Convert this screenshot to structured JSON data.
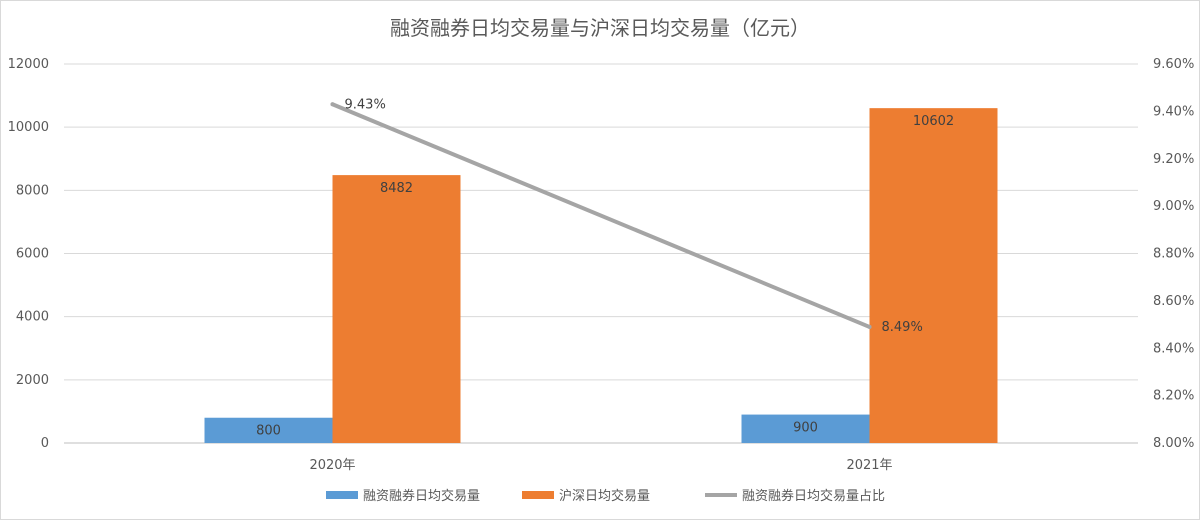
{
  "chart_data": {
    "type": "bar",
    "title": "融资融券日均交易量与沪深日均交易量（亿元）",
    "categories": [
      "2020年",
      "2021年"
    ],
    "series": [
      {
        "name": "融资融券日均交易量",
        "kind": "bar",
        "axis": "left",
        "color": "#5b9bd5",
        "values": [
          800,
          900
        ],
        "labels": [
          "800",
          "900"
        ]
      },
      {
        "name": "沪深日均交易量",
        "kind": "bar",
        "axis": "left",
        "color": "#ed7d31",
        "values": [
          8482,
          10602
        ],
        "labels": [
          "8482",
          "10602"
        ]
      },
      {
        "name": "融资融券日均交易量占比",
        "kind": "line",
        "axis": "right",
        "color": "#a5a5a5",
        "values": [
          9.43,
          8.49
        ],
        "labels": [
          "9.43%",
          "8.49%"
        ]
      }
    ],
    "y_left": {
      "min": 0,
      "max": 12000,
      "ticks": [
        "0",
        "2000",
        "4000",
        "6000",
        "8000",
        "10000",
        "12000"
      ]
    },
    "y_right": {
      "min": 8.0,
      "max": 9.6,
      "ticks": [
        "8.00%",
        "8.20%",
        "8.40%",
        "8.60%",
        "8.80%",
        "9.00%",
        "9.20%",
        "9.40%",
        "9.60%"
      ]
    },
    "grid": true,
    "legend_position": "bottom"
  }
}
